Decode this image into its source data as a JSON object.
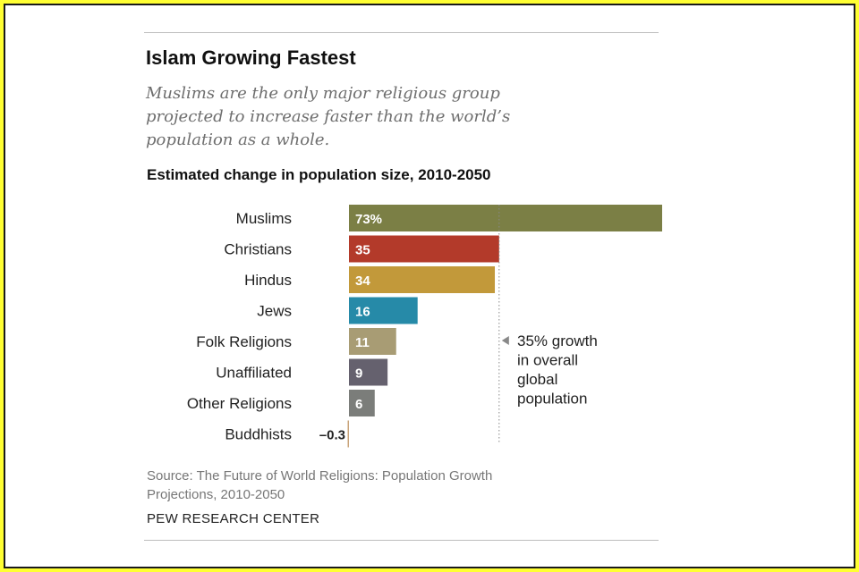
{
  "header": {
    "title": "Islam Growing Fastest",
    "subtitle_lines": [
      "Muslims are the only major religious group",
      "projected to increase faster than the world’s",
      "population as a whole."
    ]
  },
  "chart_data": {
    "type": "bar",
    "orientation": "horizontal",
    "title": "Estimated change in population size, 2010-2050",
    "categories": [
      "Muslims",
      "Christians",
      "Hindus",
      "Jews",
      "Folk Religions",
      "Unaffiliated",
      "Other Religions",
      "Buddhists"
    ],
    "values": [
      73,
      35,
      34,
      16,
      11,
      9,
      6,
      -0.3
    ],
    "value_labels": [
      "73%",
      "35",
      "34",
      "16",
      "11",
      "9",
      "6",
      "–0.3"
    ],
    "colors": [
      "#7b7f45",
      "#b33a2a",
      "#c2993a",
      "#268aa8",
      "#a89c74",
      "#65616e",
      "#7b7d7a",
      "#c9a47a"
    ],
    "xlim": [
      0,
      73
    ],
    "reference": {
      "value": 35,
      "label_lines": [
        "35% growth",
        "in overall",
        "global",
        "population"
      ]
    },
    "xlabel": "",
    "ylabel": "",
    "grid": false
  },
  "footer": {
    "source_lines": [
      "Source: The Future of World Religions: Population Growth",
      "Projections, 2010-2050"
    ],
    "brand": "PEW RESEARCH CENTER"
  }
}
